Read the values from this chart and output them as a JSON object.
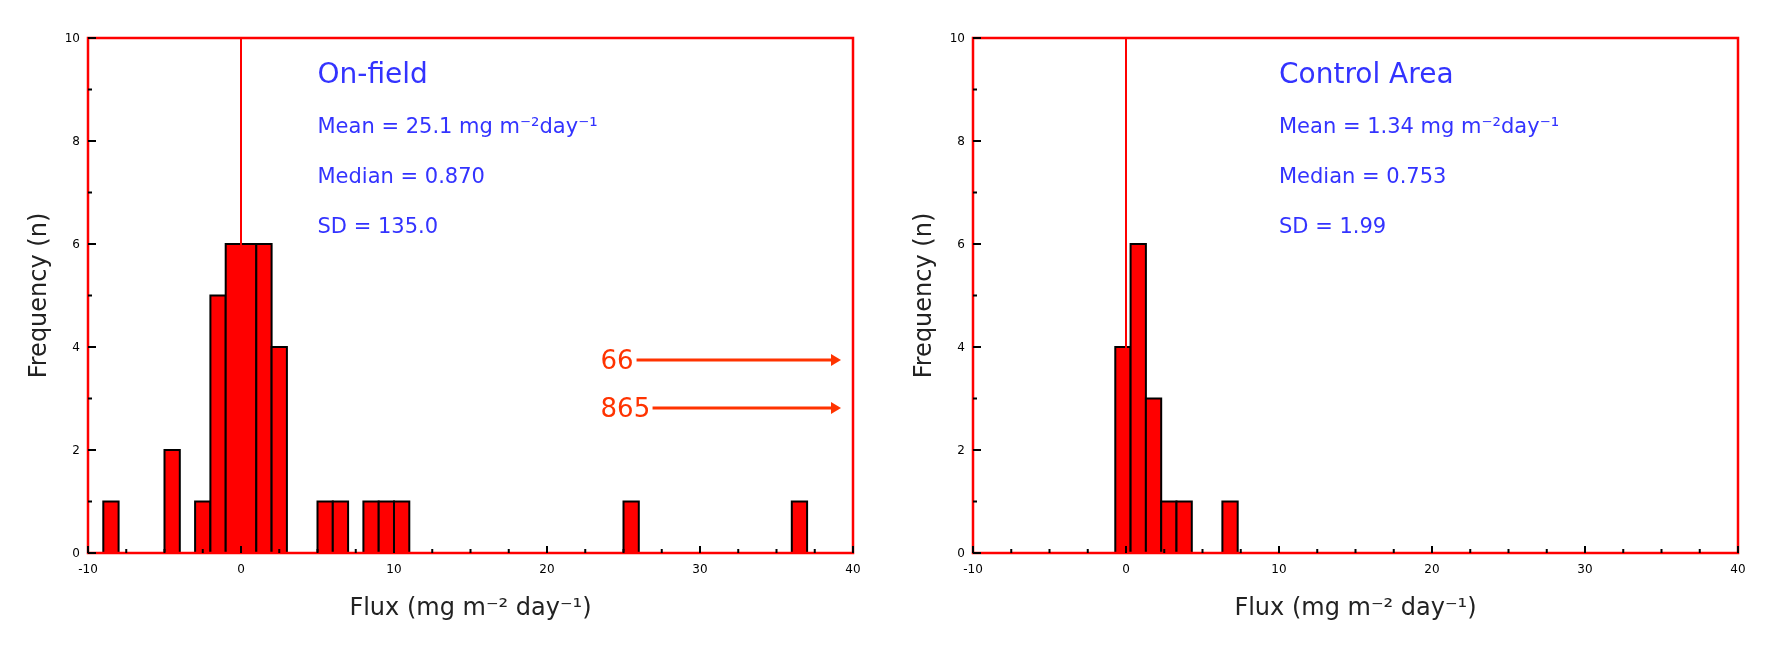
{
  "chart_data": [
    {
      "type": "histogram",
      "title": "On-field",
      "xlabel": "Flux (mg m⁻² day⁻¹)",
      "ylabel": "Frequency (n)",
      "annotations": [
        "Mean = 25.1 mg m⁻²day⁻¹",
        "Median = 0.870",
        "SD = 135.0",
        "66",
        "865"
      ],
      "bins": [
        -9,
        -8,
        -7,
        -6,
        -5,
        -4,
        -3,
        -2,
        -1,
        0,
        1,
        2,
        3,
        4,
        5,
        6,
        7,
        8,
        9,
        10,
        11,
        12,
        13,
        14,
        15,
        16,
        17,
        18,
        19,
        20,
        21,
        22,
        23,
        24,
        25,
        26,
        27,
        28,
        29,
        30,
        31,
        32,
        33,
        34,
        35,
        36,
        37
      ],
      "values": [
        1,
        0,
        0,
        0,
        2,
        0,
        1,
        5,
        6,
        6,
        6,
        4,
        0,
        0,
        1,
        1,
        0,
        1,
        1,
        1,
        0,
        0,
        0,
        0,
        0,
        0,
        0,
        0,
        0,
        0,
        0,
        0,
        0,
        0,
        1,
        0,
        0,
        0,
        0,
        0,
        0,
        0,
        0,
        0,
        0,
        1
      ],
      "color": "#ff0000",
      "xlim": [
        -10,
        40
      ],
      "xticks": [
        -10,
        {
          "value": -7.5,
          "label": null
        },
        {
          "value": -5,
          "label": null
        },
        {
          "value": -2.5,
          "label": null
        },
        0,
        {
          "value": 2.5,
          "label": null
        },
        {
          "value": 5,
          "label": null
        },
        {
          "value": 7.5,
          "label": null
        },
        10,
        {
          "value": 12.5,
          "label": null
        },
        {
          "value": 15,
          "label": null
        },
        {
          "value": 17.5,
          "label": null
        },
        20,
        {
          "value": 22.5,
          "label": null
        },
        {
          "value": 25,
          "label": null
        },
        {
          "value": 27.5,
          "label": null
        },
        30,
        {
          "value": 32.5,
          "label": null
        },
        {
          "value": 35,
          "label": null
        },
        {
          "value": 37.5,
          "label": null
        },
        40
      ],
      "ylim": [
        0,
        10
      ],
      "yticks": [
        0,
        {
          "value": 1,
          "label": null
        },
        2,
        {
          "value": 3,
          "label": null
        },
        4,
        {
          "value": 5,
          "label": null
        },
        6,
        {
          "value": 7,
          "label": null
        },
        8,
        {
          "value": 9,
          "label": null
        },
        10
      ],
      "ref_lines": [
        {
          "axis": "x",
          "value": 0,
          "color": "#ff0000"
        }
      ]
    },
    {
      "type": "histogram",
      "title": "Control Area",
      "xlabel": "Flux (mg m⁻² day⁻¹)",
      "ylabel": "Frequency (n)",
      "annotations": [
        "Mean = 1.34 mg m⁻²day⁻¹",
        "Median = 0.753",
        "SD = 1.99"
      ],
      "bins": [
        -0.7,
        0.3,
        1.3,
        2.3,
        3.3,
        4.3,
        5.3,
        6.3,
        7.3
      ],
      "values": [
        4,
        6,
        3,
        1,
        1,
        0,
        0,
        1
      ],
      "color": "#ff0000",
      "xlim": [
        -10,
        40
      ],
      "xticks": [
        -10,
        {
          "value": -7.5,
          "label": null
        },
        {
          "value": -5,
          "label": null
        },
        {
          "value": -2.5,
          "label": null
        },
        0,
        {
          "value": 2.5,
          "label": null
        },
        {
          "value": 5,
          "label": null
        },
        {
          "value": 7.5,
          "label": null
        },
        10,
        {
          "value": 12.5,
          "label": null
        },
        {
          "value": 15,
          "label": null
        },
        {
          "value": 17.5,
          "label": null
        },
        20,
        {
          "value": 22.5,
          "label": null
        },
        {
          "value": 25,
          "label": null
        },
        {
          "value": 27.5,
          "label": null
        },
        30,
        {
          "value": 32.5,
          "label": null
        },
        {
          "value": 35,
          "label": null
        },
        {
          "value": 37.5,
          "label": null
        },
        40
      ],
      "ylim": [
        0,
        10
      ],
      "yticks": [
        0,
        {
          "value": 1,
          "label": null
        },
        2,
        {
          "value": 3,
          "label": null
        },
        4,
        {
          "value": 5,
          "label": null
        },
        6,
        {
          "value": 7,
          "label": null
        },
        8,
        {
          "value": 9,
          "label": null
        },
        10
      ],
      "ref_lines": [
        {
          "axis": "x",
          "value": 0,
          "color": "#ff0000"
        }
      ]
    }
  ]
}
